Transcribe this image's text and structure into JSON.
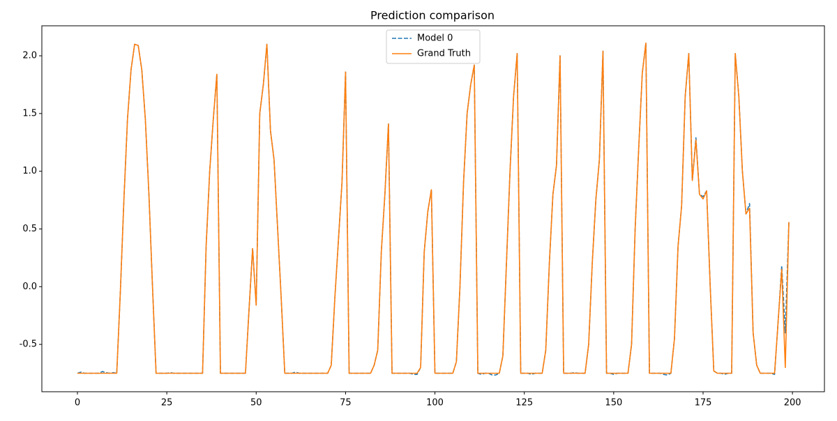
{
  "chart_data": {
    "type": "line",
    "title": "Prediction comparison",
    "x": [
      0,
      1,
      2,
      3,
      4,
      5,
      6,
      7,
      8,
      9,
      10,
      11,
      12,
      13,
      14,
      15,
      16,
      17,
      18,
      19,
      20,
      21,
      22,
      23,
      24,
      25,
      26,
      27,
      28,
      29,
      30,
      31,
      32,
      33,
      34,
      35,
      36,
      37,
      38,
      39,
      40,
      41,
      42,
      43,
      44,
      45,
      46,
      47,
      48,
      49,
      50,
      51,
      52,
      53,
      54,
      55,
      56,
      57,
      58,
      59,
      60,
      61,
      62,
      63,
      64,
      65,
      66,
      67,
      68,
      69,
      70,
      71,
      72,
      73,
      74,
      75,
      76,
      77,
      78,
      79,
      80,
      81,
      82,
      83,
      84,
      85,
      86,
      87,
      88,
      89,
      90,
      91,
      92,
      93,
      94,
      95,
      96,
      97,
      98,
      99,
      100,
      101,
      102,
      103,
      104,
      105,
      106,
      107,
      108,
      109,
      110,
      111,
      112,
      113,
      114,
      115,
      116,
      117,
      118,
      119,
      120,
      121,
      122,
      123,
      124,
      125,
      126,
      127,
      128,
      129,
      130,
      131,
      132,
      133,
      134,
      135,
      136,
      137,
      138,
      139,
      140,
      141,
      142,
      143,
      144,
      145,
      146,
      147,
      148,
      149,
      150,
      151,
      152,
      153,
      154,
      155,
      156,
      157,
      158,
      159,
      160,
      161,
      162,
      163,
      164,
      165,
      166,
      167,
      168,
      169,
      170,
      171,
      172,
      173,
      174,
      175,
      176,
      177,
      178,
      179,
      180,
      181,
      182,
      183,
      184,
      185,
      186,
      187,
      188,
      189,
      190,
      191,
      192,
      193,
      194,
      195,
      196,
      197,
      198,
      199
    ],
    "series": [
      {
        "name": "Model 0",
        "color": "#1f77b4",
        "dash": true,
        "values": [
          -0.75,
          -0.74,
          -0.75,
          -0.75,
          -0.75,
          -0.75,
          -0.75,
          -0.735,
          -0.745,
          -0.75,
          -0.745,
          -0.75,
          -0.05,
          0.75,
          1.45,
          1.88,
          2.1,
          2.09,
          1.88,
          1.45,
          0.8,
          0.0,
          -0.75,
          -0.75,
          -0.75,
          -0.75,
          -0.745,
          -0.75,
          -0.75,
          -0.75,
          -0.75,
          -0.75,
          -0.75,
          -0.75,
          -0.75,
          -0.75,
          0.35,
          1.0,
          1.45,
          1.84,
          -0.75,
          -0.75,
          -0.75,
          -0.75,
          -0.75,
          -0.75,
          -0.75,
          -0.75,
          -0.2,
          0.33,
          -0.16,
          1.5,
          1.75,
          2.1,
          1.35,
          1.1,
          0.5,
          -0.1,
          -0.75,
          -0.75,
          -0.75,
          -0.74,
          -0.75,
          -0.75,
          -0.75,
          -0.75,
          -0.75,
          -0.75,
          -0.75,
          -0.75,
          -0.75,
          -0.68,
          -0.1,
          0.4,
          0.9,
          1.86,
          -0.75,
          -0.75,
          -0.75,
          -0.75,
          -0.75,
          -0.75,
          -0.75,
          -0.68,
          -0.55,
          0.3,
          0.8,
          1.41,
          -0.75,
          -0.75,
          -0.75,
          -0.75,
          -0.75,
          -0.75,
          -0.76,
          -0.76,
          -0.7,
          0.3,
          0.65,
          0.84,
          -0.75,
          -0.75,
          -0.75,
          -0.75,
          -0.75,
          -0.75,
          -0.65,
          0.0,
          0.9,
          1.5,
          1.75,
          1.92,
          -0.75,
          -0.76,
          -0.75,
          -0.75,
          -0.765,
          -0.765,
          -0.75,
          -0.6,
          0.2,
          1.0,
          1.65,
          2.02,
          -0.75,
          -0.75,
          -0.75,
          -0.76,
          -0.75,
          -0.75,
          -0.75,
          -0.55,
          0.2,
          0.8,
          1.05,
          2.0,
          -0.75,
          -0.75,
          -0.75,
          -0.745,
          -0.75,
          -0.75,
          -0.75,
          -0.5,
          0.2,
          0.75,
          1.1,
          2.04,
          -0.75,
          -0.75,
          -0.76,
          -0.75,
          -0.75,
          -0.75,
          -0.75,
          -0.5,
          0.5,
          1.2,
          1.85,
          2.11,
          -0.75,
          -0.75,
          -0.75,
          -0.75,
          -0.76,
          -0.765,
          -0.75,
          -0.45,
          0.35,
          0.7,
          1.65,
          2.02,
          0.92,
          1.29,
          0.8,
          0.78,
          0.83,
          0.0,
          -0.73,
          -0.75,
          -0.75,
          -0.76,
          -0.75,
          -0.75,
          2.02,
          1.65,
          1.0,
          0.63,
          0.72,
          -0.4,
          -0.68,
          -0.75,
          -0.75,
          -0.75,
          -0.75,
          -0.76,
          -0.3,
          0.18,
          -0.4,
          0.56
        ]
      },
      {
        "name": "Grand Truth",
        "color": "#ff7f0e",
        "dash": false,
        "values": [
          -0.75,
          -0.75,
          -0.75,
          -0.75,
          -0.75,
          -0.75,
          -0.75,
          -0.75,
          -0.75,
          -0.75,
          -0.75,
          -0.75,
          -0.05,
          0.75,
          1.45,
          1.88,
          2.1,
          2.09,
          1.88,
          1.45,
          0.8,
          0.0,
          -0.75,
          -0.75,
          -0.75,
          -0.75,
          -0.75,
          -0.75,
          -0.75,
          -0.75,
          -0.75,
          -0.75,
          -0.75,
          -0.75,
          -0.75,
          -0.75,
          0.35,
          1.0,
          1.45,
          1.84,
          -0.75,
          -0.75,
          -0.75,
          -0.75,
          -0.75,
          -0.75,
          -0.75,
          -0.75,
          -0.2,
          0.33,
          -0.16,
          1.5,
          1.75,
          2.1,
          1.35,
          1.1,
          0.5,
          -0.1,
          -0.75,
          -0.75,
          -0.75,
          -0.75,
          -0.75,
          -0.75,
          -0.75,
          -0.75,
          -0.75,
          -0.75,
          -0.75,
          -0.75,
          -0.75,
          -0.68,
          -0.1,
          0.4,
          0.9,
          1.86,
          -0.75,
          -0.75,
          -0.75,
          -0.75,
          -0.75,
          -0.75,
          -0.75,
          -0.68,
          -0.55,
          0.3,
          0.8,
          1.41,
          -0.75,
          -0.75,
          -0.75,
          -0.75,
          -0.75,
          -0.75,
          -0.75,
          -0.75,
          -0.7,
          0.3,
          0.65,
          0.84,
          -0.75,
          -0.75,
          -0.75,
          -0.75,
          -0.75,
          -0.75,
          -0.65,
          0.0,
          0.9,
          1.5,
          1.75,
          1.92,
          -0.75,
          -0.75,
          -0.75,
          -0.75,
          -0.75,
          -0.75,
          -0.75,
          -0.6,
          0.2,
          1.0,
          1.65,
          2.02,
          -0.75,
          -0.75,
          -0.75,
          -0.75,
          -0.75,
          -0.75,
          -0.75,
          -0.55,
          0.2,
          0.8,
          1.05,
          2.0,
          -0.75,
          -0.75,
          -0.75,
          -0.75,
          -0.75,
          -0.75,
          -0.75,
          -0.5,
          0.2,
          0.75,
          1.1,
          2.04,
          -0.75,
          -0.75,
          -0.75,
          -0.75,
          -0.75,
          -0.75,
          -0.75,
          -0.5,
          0.5,
          1.2,
          1.85,
          2.11,
          -0.75,
          -0.75,
          -0.75,
          -0.75,
          -0.75,
          -0.75,
          -0.75,
          -0.45,
          0.35,
          0.7,
          1.65,
          2.02,
          0.92,
          1.27,
          0.8,
          0.76,
          0.83,
          0.0,
          -0.73,
          -0.75,
          -0.75,
          -0.75,
          -0.75,
          -0.75,
          2.02,
          1.65,
          1.0,
          0.63,
          0.68,
          -0.4,
          -0.68,
          -0.75,
          -0.75,
          -0.75,
          -0.75,
          -0.75,
          -0.3,
          0.15,
          -0.7,
          0.56
        ]
      }
    ],
    "xlim": [
      -9.95,
      208.95
    ],
    "xticks": [
      0,
      25,
      50,
      75,
      100,
      125,
      150,
      175,
      200
    ],
    "ylim": [
      -0.91,
      2.26
    ],
    "yticks": [
      -0.5,
      {
        "value": 0,
        "label": "0.0"
      },
      0.5,
      {
        "value": 1,
        "label": "1.0"
      },
      1.5,
      {
        "value": 2,
        "label": "2.0"
      }
    ],
    "grid": false,
    "legend": "upper center"
  }
}
